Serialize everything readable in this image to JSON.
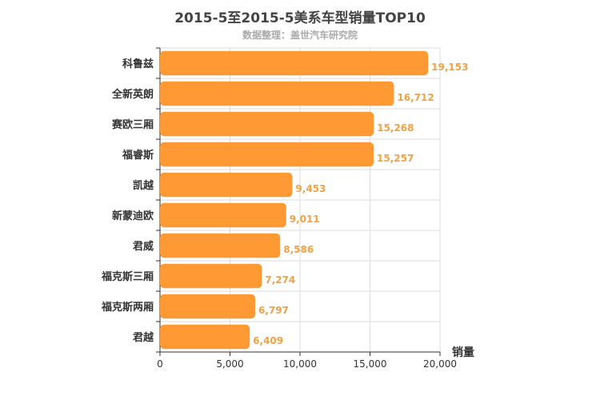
{
  "title": "2015-5至2015-5美系车型销量TOP10",
  "subtitle": "数据整理：盖世汽车研究院",
  "colors": {
    "bar": "#ff9933",
    "label": "#f0a244",
    "grid": "#dddddd",
    "axis": "#333333"
  },
  "chart_data": {
    "type": "bar",
    "orientation": "horizontal",
    "categories": [
      "科鲁兹",
      "全新英朗",
      "赛欧三厢",
      "福睿斯",
      "凯越",
      "新蒙迪欧",
      "君威",
      "福克斯三厢",
      "福克斯两厢",
      "君越"
    ],
    "values": [
      19153,
      16712,
      15268,
      15257,
      9453,
      9011,
      8586,
      7274,
      6797,
      6409
    ],
    "value_labels": [
      "19,153",
      "16,712",
      "15,268",
      "15,257",
      "9,453",
      "9,011",
      "8,586",
      "7,274",
      "6,797",
      "6,409"
    ],
    "xlabel": "销量",
    "xlim": [
      0,
      20000
    ],
    "xticks": [
      0,
      5000,
      10000,
      15000,
      20000
    ],
    "xtick_labels": [
      "0",
      "5,000",
      "10,000",
      "15,000",
      "20,000"
    ],
    "grid": true
  }
}
